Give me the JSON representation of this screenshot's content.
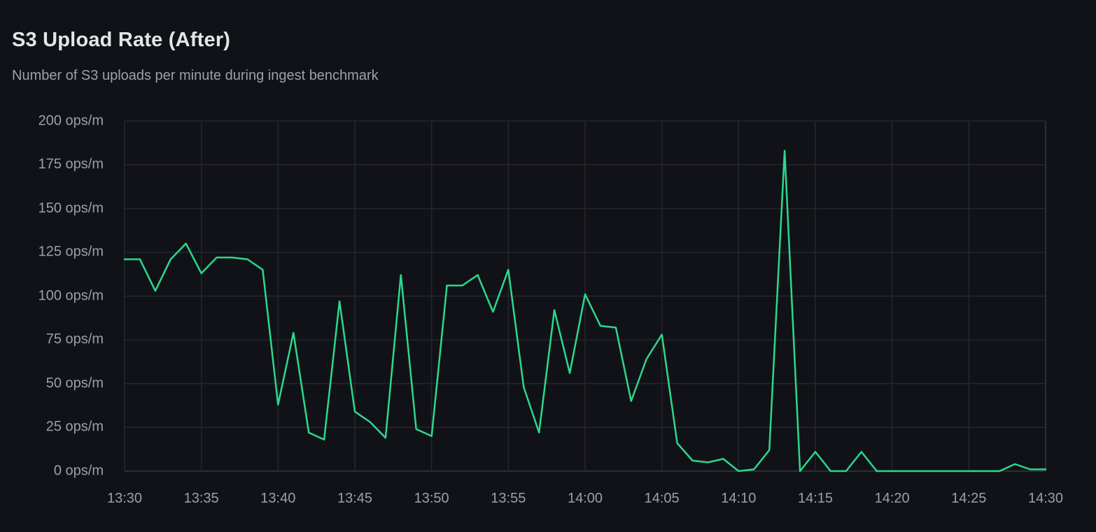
{
  "chart_data": {
    "type": "line",
    "title": "S3 Upload Rate (After)",
    "subtitle": "Number of S3 uploads per minute during ingest benchmark",
    "unit": "ops/m",
    "ylim": [
      0,
      200
    ],
    "grid": true,
    "legend": "none",
    "line_color": "#2bd98c",
    "background_color": "#111217",
    "grid_color": "#24272c",
    "border_color": "#34373d",
    "x": [
      "13:30",
      "13:31",
      "13:32",
      "13:33",
      "13:34",
      "13:35",
      "13:36",
      "13:37",
      "13:38",
      "13:39",
      "13:40",
      "13:41",
      "13:42",
      "13:43",
      "13:44",
      "13:45",
      "13:46",
      "13:47",
      "13:48",
      "13:49",
      "13:50",
      "13:51",
      "13:52",
      "13:53",
      "13:54",
      "13:55",
      "13:56",
      "13:57",
      "13:58",
      "13:59",
      "14:00",
      "14:01",
      "14:02",
      "14:03",
      "14:04",
      "14:05",
      "14:06",
      "14:07",
      "14:08",
      "14:09",
      "14:10",
      "14:11",
      "14:12",
      "14:13",
      "14:14",
      "14:15",
      "14:16",
      "14:17",
      "14:18",
      "14:19",
      "14:20",
      "14:21",
      "14:22",
      "14:23",
      "14:24",
      "14:25",
      "14:26",
      "14:27",
      "14:28",
      "14:29",
      "14:30"
    ],
    "values": [
      121,
      121,
      103,
      121,
      130,
      113,
      122,
      122,
      121,
      115,
      38,
      79,
      22,
      18,
      97,
      34,
      28,
      19,
      112,
      24,
      20,
      106,
      106,
      112,
      91,
      115,
      48,
      22,
      92,
      56,
      101,
      83,
      82,
      40,
      64,
      78,
      16,
      6,
      5,
      7,
      0,
      1,
      12,
      183,
      0,
      11,
      0,
      0,
      11,
      0,
      0,
      0,
      0,
      0,
      0,
      0,
      0,
      0,
      4,
      1,
      1
    ],
    "y_ticks": [
      0,
      25,
      50,
      75,
      100,
      125,
      150,
      175,
      200
    ],
    "y_tick_labels": [
      "0 ops/m",
      "25 ops/m",
      "50 ops/m",
      "75 ops/m",
      "100 ops/m",
      "125 ops/m",
      "150 ops/m",
      "175 ops/m",
      "200 ops/m"
    ],
    "x_ticks": [
      "13:30",
      "13:35",
      "13:40",
      "13:45",
      "13:50",
      "13:55",
      "14:00",
      "14:05",
      "14:10",
      "14:15",
      "14:20",
      "14:25",
      "14:30"
    ]
  }
}
